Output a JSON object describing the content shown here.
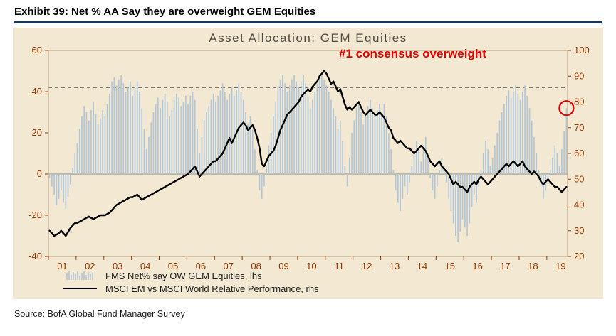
{
  "header": {
    "exhibit_title": "Exhibit 39: Net % AA Say they are overweight GEM Equities"
  },
  "source": {
    "text": "Source: BofA Global Fund Manager Survey"
  },
  "colors": {
    "panel_bg": "#f3e9d2",
    "bar": "#b3c6d8",
    "line": "#000000",
    "axis_text": "#943500",
    "frame": "#b59c7a",
    "annotation": "#e00000",
    "highlight_circle": "#e00000",
    "dashed_line": "#555555",
    "zero_line": "#8a8a8a",
    "header_underline": "#17365d"
  },
  "chart_data": {
    "type": "bar",
    "title": "Asset Allocation: GEM Equities",
    "annotation": "#1 consensus overweight",
    "x_start_year": 2001,
    "months_total": 225,
    "x_tick_labels": [
      "01",
      "02",
      "03",
      "04",
      "05",
      "06",
      "07",
      "08",
      "09",
      "10",
      "11",
      "12",
      "13",
      "14",
      "15",
      "16",
      "17",
      "18",
      "19"
    ],
    "left_axis": {
      "range": [
        -40,
        60
      ],
      "ticks": [
        60,
        40,
        20,
        0,
        -20,
        -40
      ]
    },
    "right_axis": {
      "range": [
        20,
        100
      ],
      "ticks": [
        100,
        90,
        80,
        70,
        60,
        50,
        40,
        30,
        20
      ]
    },
    "dashed_line_left_value": 42,
    "zero_line_left_value": 0,
    "highlight": {
      "series_index": 0,
      "point_index": 224,
      "left_value": 32
    },
    "legend_position": "bottom-left",
    "grid": false,
    "series": [
      {
        "name": "FMS Net% say OW GEM Equities, lhs",
        "type": "bar",
        "axis": "left",
        "color": "#b3c6d8",
        "values": [
          -2,
          -6,
          -10,
          -15,
          -12,
          -8,
          -14,
          -17,
          -11,
          -5,
          3,
          10,
          15,
          22,
          28,
          33,
          30,
          26,
          31,
          35,
          29,
          24,
          27,
          31,
          28,
          34,
          39,
          45,
          47,
          43,
          46,
          48,
          44,
          40,
          42,
          45,
          38,
          42,
          45,
          40,
          32,
          22,
          12,
          18,
          25,
          30,
          34,
          37,
          32,
          36,
          39,
          35,
          28,
          31,
          36,
          39,
          37,
          33,
          35,
          38,
          34,
          38,
          40,
          36,
          22,
          10,
          18,
          26,
          30,
          33,
          36,
          39,
          35,
          38,
          41,
          44,
          40,
          36,
          39,
          42,
          38,
          41,
          44,
          40,
          36,
          30,
          24,
          28,
          22,
          12,
          2,
          -8,
          -12,
          -6,
          4,
          14,
          20,
          28,
          35,
          42,
          46,
          48,
          44,
          40,
          43,
          46,
          48,
          45,
          42,
          45,
          48,
          44,
          38,
          32,
          36,
          40,
          44,
          47,
          49,
          46,
          43,
          40,
          36,
          32,
          28,
          22,
          26,
          16,
          4,
          -6,
          8,
          20,
          26,
          32,
          35,
          30,
          24,
          28,
          33,
          36,
          32,
          28,
          31,
          34,
          30,
          34,
          28,
          20,
          12,
          2,
          -8,
          -14,
          -18,
          -12,
          -6,
          -10,
          -4,
          4,
          10,
          16,
          12,
          6,
          14,
          18,
          8,
          -2,
          -8,
          -12,
          -6,
          2,
          8,
          4,
          -4,
          -12,
          -18,
          -24,
          -30,
          -33,
          -28,
          -22,
          -26,
          -30,
          -24,
          -16,
          -10,
          -14,
          -6,
          2,
          10,
          16,
          12,
          4,
          8,
          14,
          20,
          26,
          30,
          34,
          38,
          41,
          37,
          40,
          43,
          39,
          36,
          40,
          43,
          38,
          32,
          26,
          18,
          10,
          2,
          -6,
          -12,
          -8,
          -4,
          2,
          8,
          14,
          10,
          4,
          12,
          21,
          32
        ]
      },
      {
        "name": "MSCI EM vs MSCI World Relative Performance, rhs",
        "type": "line",
        "axis": "right",
        "color": "#000000",
        "values": [
          30,
          29,
          28,
          28.5,
          29,
          30,
          29,
          28,
          29.5,
          31,
          32,
          33,
          33,
          33.5,
          34,
          34.5,
          35,
          35.5,
          35,
          34.5,
          35,
          35.5,
          36,
          36,
          36,
          36.5,
          37,
          38,
          39,
          40,
          40.5,
          41,
          41.5,
          42,
          42.5,
          43,
          43,
          43.5,
          44,
          43,
          42,
          42.5,
          43,
          43.5,
          44,
          44.5,
          45,
          45.5,
          46,
          46.5,
          47,
          47.5,
          48,
          48.5,
          49,
          49.5,
          50,
          50.5,
          51,
          51.5,
          52,
          53,
          54,
          55,
          53,
          51,
          52,
          53,
          54,
          55,
          56,
          57,
          57,
          58,
          59,
          60,
          62,
          64,
          66,
          64,
          66,
          68,
          70,
          71,
          72,
          71,
          69,
          70,
          71,
          69,
          66,
          62,
          56,
          55,
          57,
          59,
          60,
          61,
          63,
          66,
          69,
          71,
          73,
          75,
          76,
          77,
          78,
          79,
          80,
          82,
          83,
          84,
          85,
          84,
          86,
          87,
          88,
          90,
          91,
          92,
          91,
          89,
          87,
          88,
          86,
          84,
          85,
          82,
          79,
          77,
          78,
          77,
          78,
          79,
          80,
          78,
          76,
          75,
          76,
          77,
          76,
          75,
          75,
          76,
          75,
          74,
          72,
          70,
          69,
          66,
          65,
          64,
          65,
          64,
          63,
          62,
          62,
          61,
          60,
          61,
          62,
          63,
          62,
          61,
          59,
          57,
          56,
          55,
          56,
          57,
          55,
          54,
          53,
          52,
          50,
          48,
          49,
          48,
          47,
          47,
          46,
          45,
          47,
          48,
          49,
          48,
          50,
          51,
          50,
          49,
          48,
          49,
          50,
          51,
          52,
          53,
          54,
          55,
          56,
          55,
          56,
          57,
          56,
          55,
          56,
          57,
          55,
          54,
          53,
          52,
          53,
          52,
          51,
          49,
          48,
          49,
          50,
          49,
          48,
          47,
          47,
          46,
          45,
          46,
          47
        ]
      }
    ]
  }
}
